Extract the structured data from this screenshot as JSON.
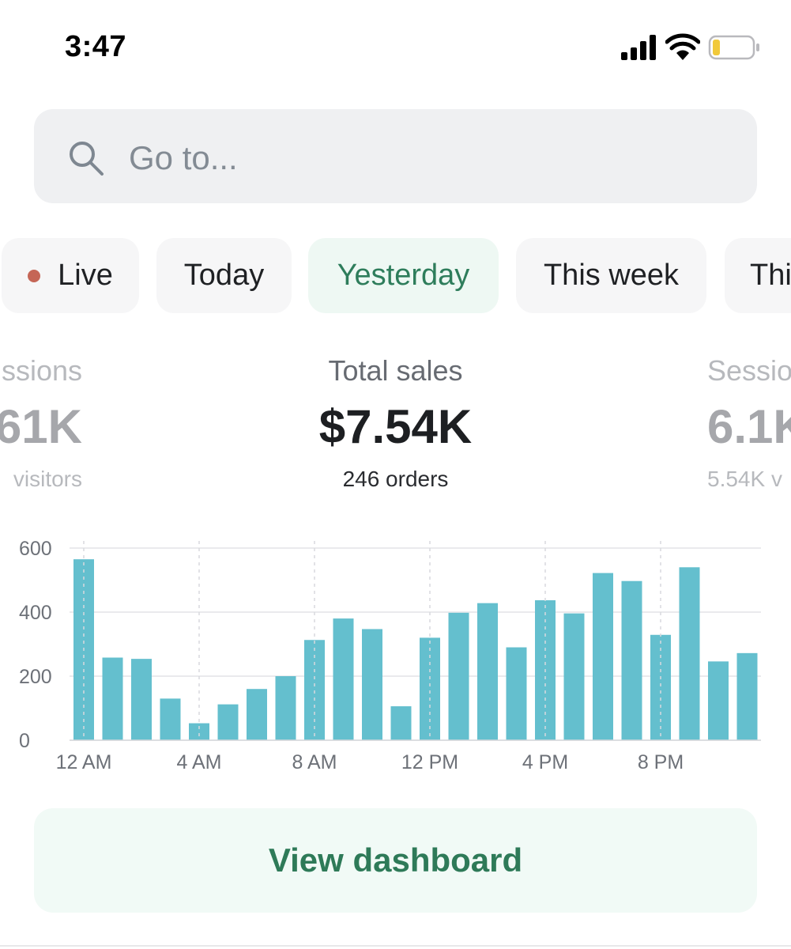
{
  "status": {
    "time": "3:47"
  },
  "search": {
    "placeholder": "Go to..."
  },
  "tabs": [
    {
      "label": "Live",
      "live": true
    },
    {
      "label": "Today"
    },
    {
      "label": "Yesterday",
      "selected": true
    },
    {
      "label": "This week"
    },
    {
      "label": "Thi"
    }
  ],
  "metrics": {
    "left": {
      "label": "ssions",
      "value": "61K",
      "sub": "visitors"
    },
    "center": {
      "label": "Total sales",
      "value": "$7.54K",
      "sub": "246 orders"
    },
    "right": {
      "label": "Sessio",
      "value": "6.1K",
      "sub": "5.54K v"
    }
  },
  "chart_data": {
    "type": "bar",
    "y_ticks": [
      "600",
      "400",
      "200",
      "0"
    ],
    "x_ticks": [
      "12 AM",
      "4 AM",
      "8 AM",
      "12 PM",
      "4 PM",
      "8 PM"
    ],
    "categories": [
      "12 AM",
      "1 AM",
      "2 AM",
      "3 AM",
      "4 AM",
      "5 AM",
      "6 AM",
      "7 AM",
      "8 AM",
      "9 AM",
      "10 AM",
      "11 AM",
      "12 PM",
      "1 PM",
      "2 PM",
      "3 PM",
      "4 PM",
      "5 PM",
      "6 PM",
      "7 PM",
      "8 PM",
      "9 PM",
      "10 PM",
      "11 PM"
    ],
    "values": [
      565,
      258,
      254,
      130,
      53,
      112,
      160,
      200,
      313,
      380,
      347,
      106,
      320,
      398,
      428,
      290,
      437,
      396,
      522,
      497,
      329,
      540,
      246,
      272
    ],
    "ylim": [
      0,
      600
    ],
    "bar_color": "#64bfce",
    "grid": true
  },
  "dashboard_button": {
    "label": "View dashboard"
  },
  "colors": {
    "accent": "#2e7d5b",
    "live_dot": "#c56656"
  }
}
